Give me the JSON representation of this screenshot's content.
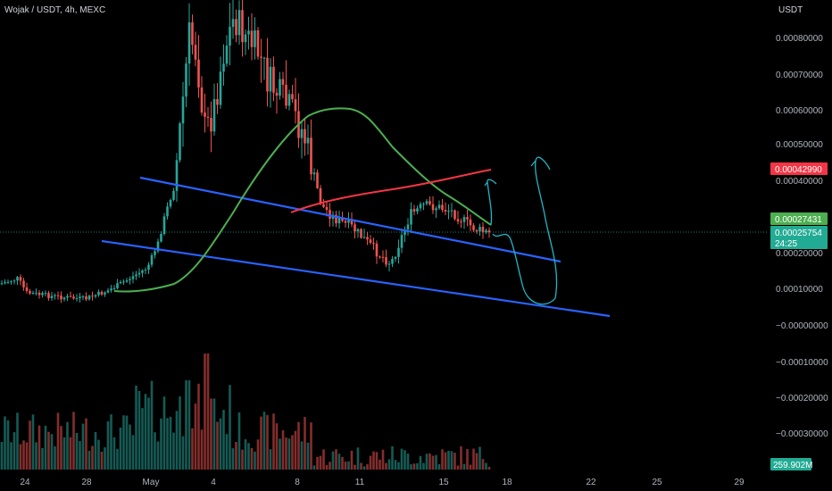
{
  "header": {
    "symbol_title": "Wojak / USDT, 4h, MEXC",
    "unit": "USDT"
  },
  "chart_data": {
    "type": "candlestick",
    "symbol": "Wojak / USDT",
    "interval": "4h",
    "exchange": "MEXC",
    "y_axis": {
      "unit": "USDT",
      "ticks": [
        "0.00080000",
        "0.00070000",
        "0.00060000",
        "0.00050000",
        "0.00040000",
        "0.00020000",
        "0.00010000",
        "−0.00000000",
        "−0.00010000",
        "−0.00020000",
        "−0.00030000"
      ],
      "range": [
        -0.00033,
        0.00085
      ]
    },
    "x_axis": {
      "ticks": [
        "24",
        "28",
        "May",
        "4",
        "8",
        "11",
        "15",
        "18",
        "22",
        "25",
        "29"
      ]
    },
    "price_labels": [
      {
        "name": "moving-average-red",
        "value": "0.00042990",
        "color": "#f23645"
      },
      {
        "name": "moving-average-green",
        "value": "0.00027431",
        "color": "#4caf50"
      },
      {
        "name": "last-price",
        "value": "0.00025754",
        "color": "#22ab94",
        "countdown": "24:25"
      }
    ],
    "volume_label": {
      "value": "259.902M",
      "color": "#22ab94"
    },
    "colors": {
      "up": "#26a69a",
      "down": "#ef5350",
      "ma_green": "#4caf50",
      "ma_red": "#f23645",
      "trendline": "#2962ff",
      "drawing": "#22b5c5"
    }
  }
}
